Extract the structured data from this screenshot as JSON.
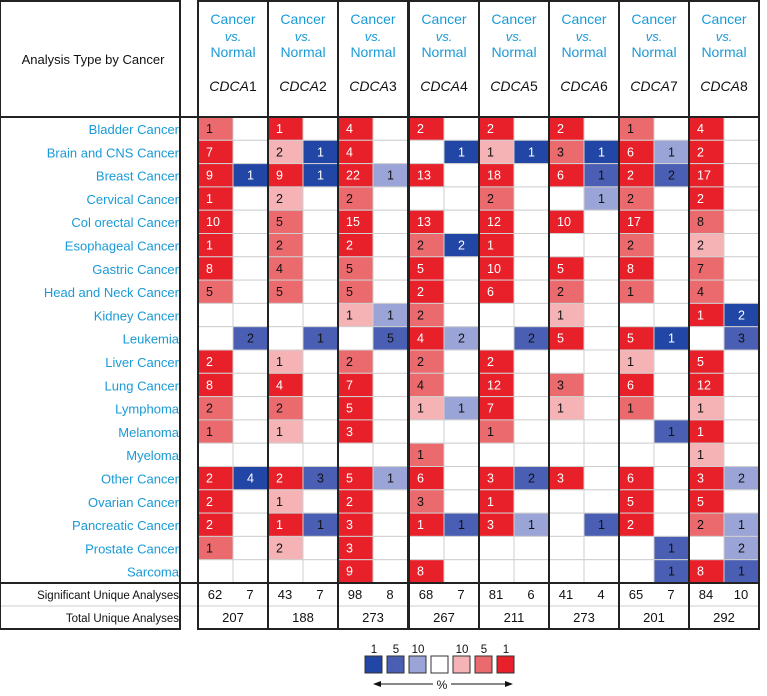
{
  "chart_data": {
    "type": "heatmap",
    "header_label": "Analysis Type by Cancer",
    "column_group_header": {
      "line1": "Cancer",
      "line2": "vs.",
      "line3": "Normal"
    },
    "genes": [
      {
        "prefix": "CDCA",
        "num": "1"
      },
      {
        "prefix": "CDCA",
        "num": "2"
      },
      {
        "prefix": "CDCA",
        "num": "3"
      },
      {
        "prefix": "CDCA",
        "num": "4"
      },
      {
        "prefix": "CDCA",
        "num": "5"
      },
      {
        "prefix": "CDCA",
        "num": "6"
      },
      {
        "prefix": "CDCA",
        "num": "7"
      },
      {
        "prefix": "CDCA",
        "num": "8"
      }
    ],
    "cancer_types": [
      "Bladder Cancer",
      "Brain and CNS Cancer",
      "Breast Cancer",
      "Cervical Cancer",
      "Col orectal Cancer",
      "Esophageal Cancer",
      "Gastric Cancer",
      "Head and Neck Cancer",
      "Kidney Cancer",
      "Leukemia",
      "Liver Cancer",
      "Lung Cancer",
      "Lymphoma",
      "Melanoma",
      "Myeloma",
      "Other Cancer",
      "Ovarian Cancer",
      "Pancreatic Cancer",
      "Prostate Cancer",
      "Sarcoma"
    ],
    "cells": [
      [
        [
          [
            "1",
            "r2"
          ],
          null
        ],
        [
          [
            "1",
            "r1"
          ],
          null
        ],
        [
          [
            "4",
            "r1"
          ],
          null
        ],
        [
          [
            "2",
            "r1"
          ],
          null
        ],
        [
          [
            "2",
            "r1"
          ],
          null
        ],
        [
          [
            "2",
            "r1"
          ],
          null
        ],
        [
          [
            "1",
            "r2"
          ],
          null
        ],
        [
          [
            "4",
            "r1"
          ],
          null
        ]
      ],
      [
        [
          [
            "7",
            "r1"
          ],
          null
        ],
        [
          [
            "2",
            "r3"
          ],
          [
            "1",
            "b1"
          ]
        ],
        [
          [
            "4",
            "r1"
          ],
          null
        ],
        [
          null,
          [
            "1",
            "b1"
          ]
        ],
        [
          [
            "1",
            "r3"
          ],
          [
            "1",
            "b1"
          ]
        ],
        [
          [
            "3",
            "r2"
          ],
          [
            "1",
            "b1"
          ]
        ],
        [
          [
            "6",
            "r1"
          ],
          [
            "1",
            "b3"
          ]
        ],
        [
          [
            "2",
            "r1"
          ],
          null
        ]
      ],
      [
        [
          [
            "9",
            "r1"
          ],
          [
            "1",
            "b1"
          ]
        ],
        [
          [
            "9",
            "r1"
          ],
          [
            "1",
            "b1"
          ]
        ],
        [
          [
            "22",
            "r1"
          ],
          [
            "1",
            "b3"
          ]
        ],
        [
          [
            "13",
            "r1"
          ],
          null
        ],
        [
          [
            "18",
            "r1"
          ],
          null
        ],
        [
          [
            "6",
            "r1"
          ],
          [
            "1",
            "b2"
          ]
        ],
        [
          [
            "2",
            "r1"
          ],
          [
            "2",
            "b2"
          ]
        ],
        [
          [
            "17",
            "r1"
          ],
          null
        ]
      ],
      [
        [
          [
            "1",
            "r1"
          ],
          null
        ],
        [
          [
            "2",
            "r3"
          ],
          null
        ],
        [
          [
            "2",
            "r2"
          ],
          null
        ],
        [
          null,
          null
        ],
        [
          [
            "2",
            "r2"
          ],
          null
        ],
        [
          null,
          [
            "1",
            "b3"
          ]
        ],
        [
          [
            "2",
            "r2"
          ],
          null
        ],
        [
          [
            "2",
            "r1"
          ],
          null
        ]
      ],
      [
        [
          [
            "10",
            "r1"
          ],
          null
        ],
        [
          [
            "5",
            "r2"
          ],
          null
        ],
        [
          [
            "15",
            "r1"
          ],
          null
        ],
        [
          [
            "13",
            "r1"
          ],
          null
        ],
        [
          [
            "12",
            "r1"
          ],
          null
        ],
        [
          [
            "10",
            "r1"
          ],
          null
        ],
        [
          [
            "17",
            "r1"
          ],
          null
        ],
        [
          [
            "8",
            "r2"
          ],
          null
        ]
      ],
      [
        [
          [
            "1",
            "r1"
          ],
          null
        ],
        [
          [
            "2",
            "r2"
          ],
          null
        ],
        [
          [
            "2",
            "r1"
          ],
          null
        ],
        [
          [
            "2",
            "r2"
          ],
          [
            "2",
            "b1"
          ]
        ],
        [
          [
            "1",
            "r1"
          ],
          null
        ],
        [
          null,
          null
        ],
        [
          [
            "2",
            "r2"
          ],
          null
        ],
        [
          [
            "2",
            "r3"
          ],
          null
        ]
      ],
      [
        [
          [
            "8",
            "r1"
          ],
          null
        ],
        [
          [
            "4",
            "r2"
          ],
          null
        ],
        [
          [
            "5",
            "r2"
          ],
          null
        ],
        [
          [
            "5",
            "r1"
          ],
          null
        ],
        [
          [
            "10",
            "r1"
          ],
          null
        ],
        [
          [
            "5",
            "r1"
          ],
          null
        ],
        [
          [
            "8",
            "r1"
          ],
          null
        ],
        [
          [
            "7",
            "r2"
          ],
          null
        ]
      ],
      [
        [
          [
            "5",
            "r2"
          ],
          null
        ],
        [
          [
            "5",
            "r2"
          ],
          null
        ],
        [
          [
            "5",
            "r2"
          ],
          null
        ],
        [
          [
            "2",
            "r1"
          ],
          null
        ],
        [
          [
            "6",
            "r1"
          ],
          null
        ],
        [
          [
            "2",
            "r2"
          ],
          null
        ],
        [
          [
            "1",
            "r2"
          ],
          null
        ],
        [
          [
            "4",
            "r2"
          ],
          null
        ]
      ],
      [
        [
          null,
          null
        ],
        [
          null,
          null
        ],
        [
          [
            "1",
            "r3"
          ],
          [
            "1",
            "b3"
          ]
        ],
        [
          [
            "2",
            "r2"
          ],
          null
        ],
        [
          null,
          null
        ],
        [
          [
            "1",
            "r3"
          ],
          null
        ],
        [
          null,
          null
        ],
        [
          [
            "1",
            "r1"
          ],
          [
            "2",
            "b1"
          ]
        ]
      ],
      [
        [
          null,
          [
            "2",
            "b2"
          ]
        ],
        [
          null,
          [
            "1",
            "b2"
          ]
        ],
        [
          null,
          [
            "5",
            "b2"
          ]
        ],
        [
          [
            "4",
            "r1"
          ],
          [
            "2",
            "b3"
          ]
        ],
        [
          null,
          [
            "2",
            "b2"
          ]
        ],
        [
          [
            "5",
            "r1"
          ],
          null
        ],
        [
          [
            "5",
            "r1"
          ],
          [
            "1",
            "b1"
          ]
        ],
        [
          null,
          [
            "3",
            "b2"
          ]
        ]
      ],
      [
        [
          [
            "2",
            "r1"
          ],
          null
        ],
        [
          [
            "1",
            "r3"
          ],
          null
        ],
        [
          [
            "2",
            "r2"
          ],
          null
        ],
        [
          [
            "2",
            "r2"
          ],
          null
        ],
        [
          [
            "2",
            "r1"
          ],
          null
        ],
        [
          null,
          null
        ],
        [
          [
            "1",
            "r3"
          ],
          null
        ],
        [
          [
            "5",
            "r1"
          ],
          null
        ]
      ],
      [
        [
          [
            "8",
            "r1"
          ],
          null
        ],
        [
          [
            "4",
            "r1"
          ],
          null
        ],
        [
          [
            "7",
            "r1"
          ],
          null
        ],
        [
          [
            "4",
            "r2"
          ],
          null
        ],
        [
          [
            "12",
            "r1"
          ],
          null
        ],
        [
          [
            "3",
            "r2"
          ],
          null
        ],
        [
          [
            "6",
            "r1"
          ],
          null
        ],
        [
          [
            "12",
            "r1"
          ],
          null
        ]
      ],
      [
        [
          [
            "2",
            "r2"
          ],
          null
        ],
        [
          [
            "2",
            "r2"
          ],
          null
        ],
        [
          [
            "5",
            "r1"
          ],
          null
        ],
        [
          [
            "1",
            "r3"
          ],
          [
            "1",
            "b3"
          ]
        ],
        [
          [
            "7",
            "r1"
          ],
          null
        ],
        [
          [
            "1",
            "r3"
          ],
          null
        ],
        [
          [
            "1",
            "r2"
          ],
          null
        ],
        [
          [
            "1",
            "r3"
          ],
          null
        ]
      ],
      [
        [
          [
            "1",
            "r2"
          ],
          null
        ],
        [
          [
            "1",
            "r3"
          ],
          null
        ],
        [
          [
            "3",
            "r1"
          ],
          null
        ],
        [
          null,
          null
        ],
        [
          [
            "1",
            "r2"
          ],
          null
        ],
        [
          null,
          null
        ],
        [
          null,
          [
            "1",
            "b2"
          ]
        ],
        [
          [
            "1",
            "r1"
          ],
          null
        ]
      ],
      [
        [
          null,
          null
        ],
        [
          null,
          null
        ],
        [
          null,
          null
        ],
        [
          [
            "1",
            "r2"
          ],
          null
        ],
        [
          null,
          null
        ],
        [
          null,
          null
        ],
        [
          null,
          null
        ],
        [
          [
            "1",
            "r3"
          ],
          null
        ]
      ],
      [
        [
          [
            "2",
            "r1"
          ],
          [
            "4",
            "b1"
          ]
        ],
        [
          [
            "2",
            "r1"
          ],
          [
            "3",
            "b2"
          ]
        ],
        [
          [
            "5",
            "r1"
          ],
          [
            "1",
            "b3"
          ]
        ],
        [
          [
            "6",
            "r1"
          ],
          null
        ],
        [
          [
            "3",
            "r1"
          ],
          [
            "2",
            "b2"
          ]
        ],
        [
          [
            "3",
            "r1"
          ],
          null
        ],
        [
          [
            "6",
            "r1"
          ],
          null
        ],
        [
          [
            "3",
            "r1"
          ],
          [
            "2",
            "b3"
          ]
        ]
      ],
      [
        [
          [
            "2",
            "r1"
          ],
          null
        ],
        [
          [
            "1",
            "r3"
          ],
          null
        ],
        [
          [
            "2",
            "r1"
          ],
          null
        ],
        [
          [
            "3",
            "r2"
          ],
          null
        ],
        [
          [
            "1",
            "r1"
          ],
          null
        ],
        [
          null,
          null
        ],
        [
          [
            "5",
            "r1"
          ],
          null
        ],
        [
          [
            "5",
            "r1"
          ],
          null
        ]
      ],
      [
        [
          [
            "2",
            "r1"
          ],
          null
        ],
        [
          [
            "1",
            "r1"
          ],
          [
            "1",
            "b2"
          ]
        ],
        [
          [
            "3",
            "r1"
          ],
          null
        ],
        [
          [
            "1",
            "r1"
          ],
          [
            "1",
            "b2"
          ]
        ],
        [
          [
            "3",
            "r1"
          ],
          [
            "1",
            "b3"
          ]
        ],
        [
          null,
          [
            "1",
            "b2"
          ]
        ],
        [
          [
            "2",
            "r1"
          ],
          null
        ],
        [
          [
            "2",
            "r2"
          ],
          [
            "1",
            "b3"
          ]
        ]
      ],
      [
        [
          [
            "1",
            "r2"
          ],
          null
        ],
        [
          [
            "2",
            "r3"
          ],
          null
        ],
        [
          [
            "3",
            "r1"
          ],
          null
        ],
        [
          null,
          null
        ],
        [
          null,
          null
        ],
        [
          null,
          null
        ],
        [
          null,
          [
            "1",
            "b2"
          ]
        ],
        [
          null,
          [
            "2",
            "b3"
          ]
        ]
      ],
      [
        [
          null,
          null
        ],
        [
          null,
          null
        ],
        [
          [
            "9",
            "r1"
          ],
          null
        ],
        [
          [
            "8",
            "r1"
          ],
          null
        ],
        [
          null,
          null
        ],
        [
          null,
          null
        ],
        [
          null,
          [
            "1",
            "b2"
          ]
        ],
        [
          [
            "8",
            "r1"
          ],
          [
            "1",
            "b2"
          ]
        ]
      ]
    ],
    "summary": {
      "significant_label": "Significant Unique Analyses",
      "total_label": "Total Unique Analyses",
      "significant": [
        [
          "62",
          "7"
        ],
        [
          "43",
          "7"
        ],
        [
          "98",
          "8"
        ],
        [
          "68",
          "7"
        ],
        [
          "81",
          "6"
        ],
        [
          "41",
          "4"
        ],
        [
          "65",
          "7"
        ],
        [
          "84",
          "10"
        ]
      ],
      "total": [
        "207",
        "188",
        "273",
        "267",
        "211",
        "273",
        "201",
        "292"
      ]
    },
    "legend": {
      "labels": [
        "1",
        "5",
        "10",
        "10",
        "5",
        "1"
      ],
      "swatch_classes": [
        "b1",
        "b2",
        "b3",
        "w",
        "r3",
        "r2",
        "r1"
      ],
      "unit": "%"
    },
    "colors": {
      "r1": "#e8202a",
      "r2": "#ea6a6e",
      "r3": "#f5b3b6",
      "b1": "#2146a6",
      "b2": "#4a5fb3",
      "b3": "#9ba4d6",
      "w": "#ffffff",
      "label": "#1a9ad6",
      "grid": "#cfcfcf",
      "border": "#222222"
    }
  }
}
